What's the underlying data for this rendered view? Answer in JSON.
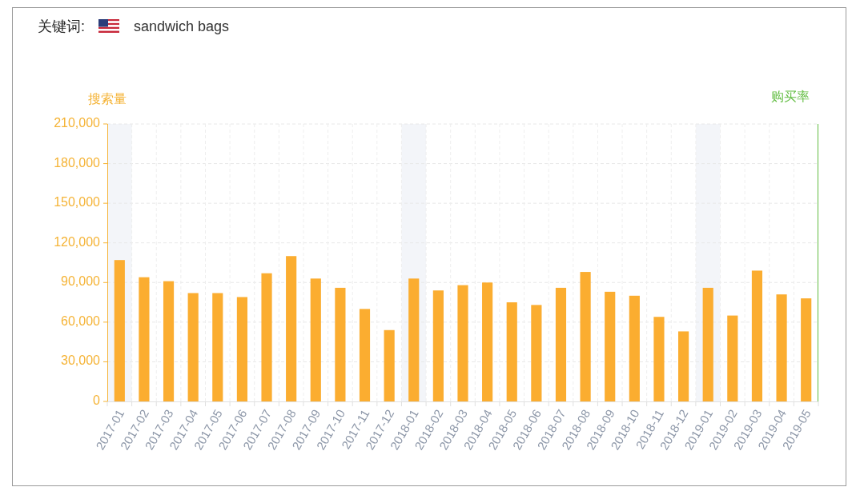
{
  "chart_data": {
    "type": "bar",
    "title": "关键词:",
    "subtitle": "sandwich bags",
    "ylabel": "搜索量",
    "y2label": "购买率",
    "categories": [
      "2017-01",
      "2017-02",
      "2017-03",
      "2017-04",
      "2017-05",
      "2017-06",
      "2017-07",
      "2017-08",
      "2017-09",
      "2017-10",
      "2017-11",
      "2017-12",
      "2018-01",
      "2018-02",
      "2018-03",
      "2018-04",
      "2018-05",
      "2018-06",
      "2018-07",
      "2018-08",
      "2018-09",
      "2018-10",
      "2018-11",
      "2018-12",
      "2019-01",
      "2019-02",
      "2019-03",
      "2019-04",
      "2019-05"
    ],
    "values": [
      107000,
      94000,
      91000,
      82000,
      82000,
      79000,
      97000,
      110000,
      93000,
      86000,
      70000,
      54000,
      93000,
      84000,
      88000,
      90000,
      75000,
      73000,
      86000,
      98000,
      83000,
      80000,
      64000,
      53000,
      86000,
      65000,
      99000,
      81000,
      78000
    ],
    "color": "#fbad30",
    "ylim": [
      0,
      210000
    ],
    "yticks": [
      0,
      {
        "value": 30000,
        "label": "30,000"
      },
      {
        "value": 60000,
        "label": "60,000"
      },
      {
        "value": 90000,
        "label": "90,000"
      },
      {
        "value": 120000,
        "label": "120,000"
      },
      {
        "value": 150000,
        "label": "150,000"
      },
      {
        "value": 180000,
        "label": "180,000"
      },
      {
        "value": 210000,
        "label": "210,000"
      }
    ],
    "grid": true,
    "bands": [
      {
        "axis": "x",
        "from": "2017-01",
        "to": "2017-01",
        "color": "#f3f5f9"
      },
      {
        "axis": "x",
        "from": "2018-01",
        "to": "2018-01",
        "color": "#f3f5f9"
      },
      {
        "axis": "x",
        "from": "2019-01",
        "to": "2019-01",
        "color": "#f3f5f9"
      }
    ]
  }
}
